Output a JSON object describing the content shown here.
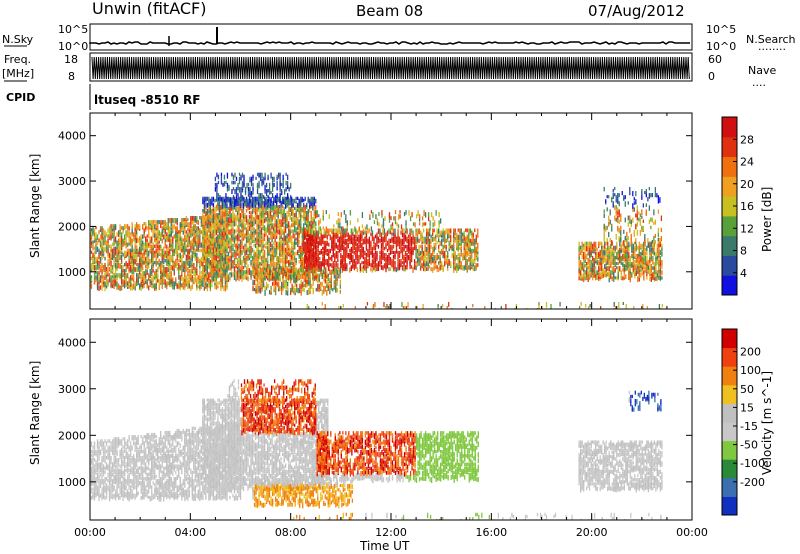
{
  "header": {
    "station": "Unwin (fitACF)",
    "beam": "Beam 08",
    "date": "07/Aug/2012"
  },
  "top_panels": {
    "nsky_label": "N.Sky",
    "nsky_ticks": [
      "10^5",
      "10^0"
    ],
    "nsearch_label": "N.Search",
    "nsearch_dots": "........",
    "nsearch_ticks": [
      "10^5",
      "10^0"
    ],
    "freq_label_1": "Freq.",
    "freq_label_2": "[MHz]",
    "freq_ticks": [
      "18",
      "8"
    ],
    "nave_label": "Nave",
    "nave_dots": "....",
    "nave_ticks": [
      "60",
      "0"
    ],
    "cpid_label": "CPID",
    "cpid_text": "ltuseq -8510 RF"
  },
  "chart_data": [
    {
      "type": "heatmap",
      "ylabel": "Slant Range [km]",
      "xlabel": "",
      "ylim": [
        180,
        4500
      ],
      "yticks": [
        "1000",
        "2000",
        "3000",
        "4000"
      ],
      "xticks": [
        "00:00",
        "04:00",
        "08:00",
        "12:00",
        "16:00",
        "20:00",
        "00:00"
      ],
      "colorbar": {
        "label": "Power [dB]",
        "ticks": [
          "4",
          "8",
          "12",
          "16",
          "20",
          "24",
          "28"
        ],
        "colors": [
          "#1010e0",
          "#2a4aa0",
          "#3a7a6a",
          "#5aa03a",
          "#c8c020",
          "#f0a020",
          "#f07010",
          "#e03010",
          "#d01010"
        ]
      }
    },
    {
      "type": "heatmap",
      "ylabel": "Slant Range [km]",
      "xlabel": "Time UT",
      "ylim": [
        180,
        4500
      ],
      "yticks": [
        "1000",
        "2000",
        "3000",
        "4000"
      ],
      "xticks": [
        "00:00",
        "04:00",
        "08:00",
        "12:00",
        "16:00",
        "20:00",
        "00:00"
      ],
      "colorbar": {
        "label": "Velocity [m s^-1]",
        "ticks": [
          "200",
          "100",
          "50",
          "15",
          "-15",
          "-50",
          "-100",
          "-200"
        ],
        "colors": [
          "#1030c0",
          "#3a70b0",
          "#2a8a3a",
          "#80c840",
          "#c8c8c8",
          "#c0c0c0",
          "#f0c020",
          "#f08010",
          "#f04010",
          "#d00000"
        ]
      }
    }
  ]
}
